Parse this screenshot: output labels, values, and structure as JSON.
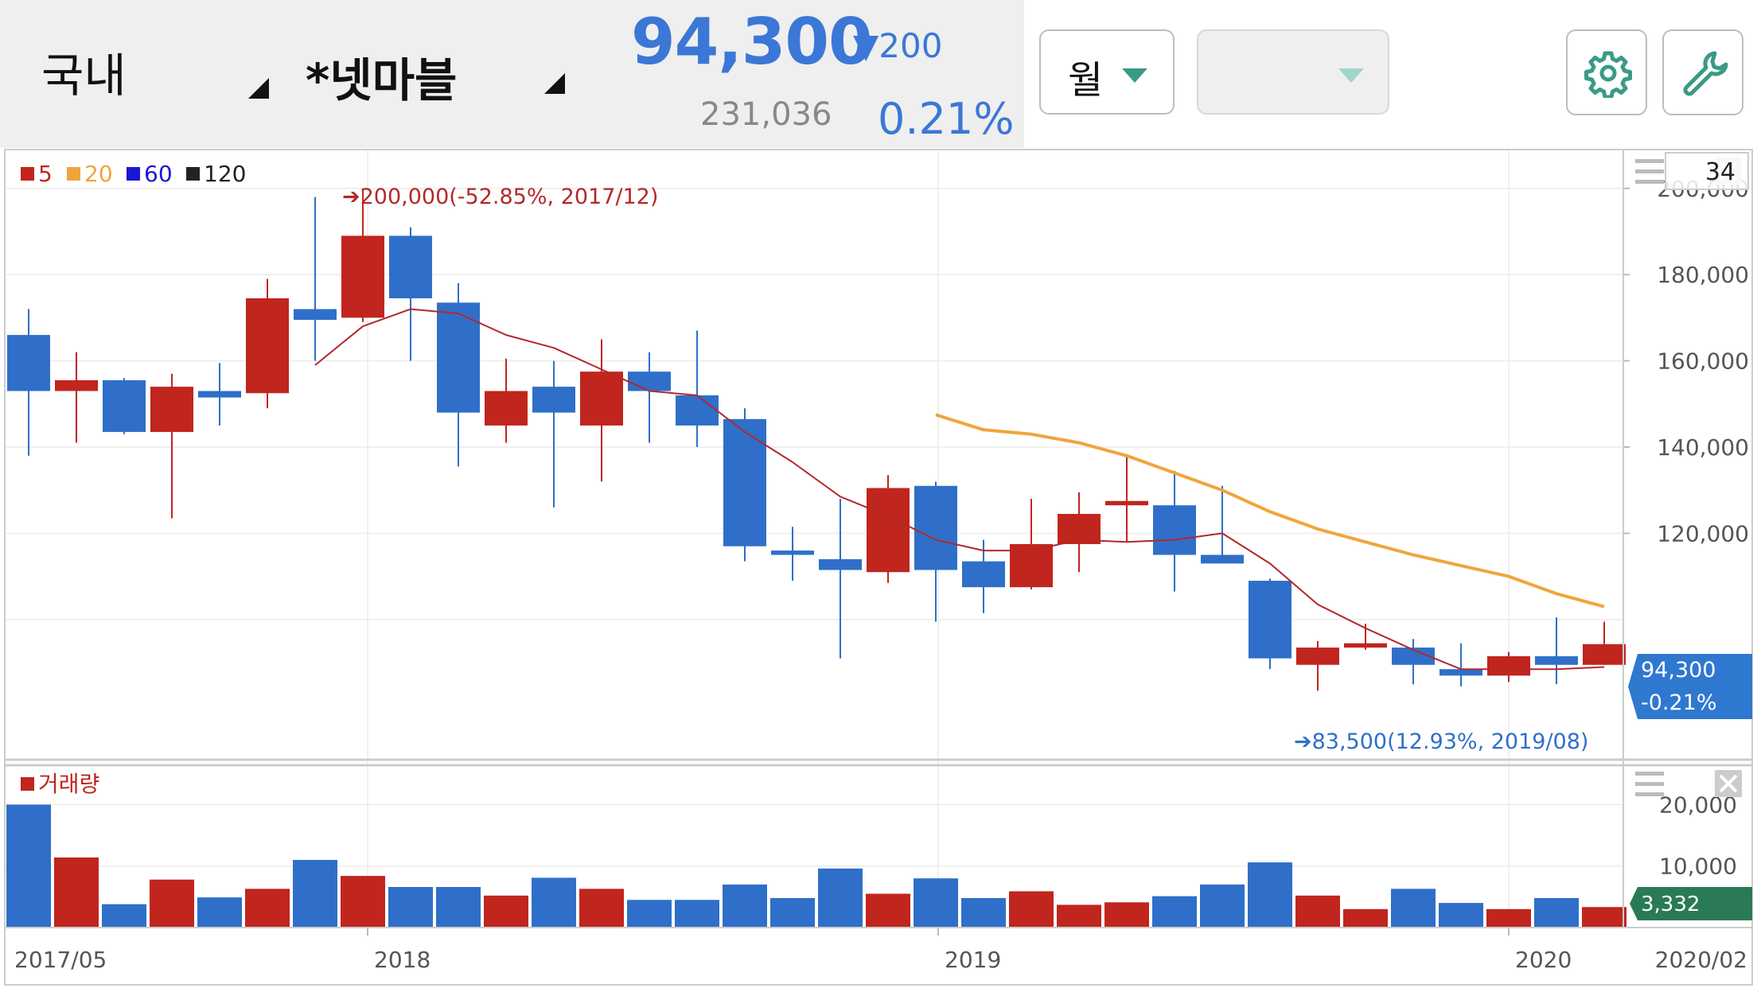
{
  "header": {
    "market": "국내",
    "stock": "*넷마블",
    "price": "94,300",
    "change": "▼200",
    "volume": "231,036",
    "change_pct": "0.21%",
    "period_label": "월",
    "empty_select": "",
    "accent_color": "#3b77d6",
    "settings_icon": "gear-icon",
    "tools_icon": "wrench-icon"
  },
  "legend": {
    "ma5": "5",
    "ma20": "20",
    "ma60": "60",
    "ma120": "120"
  },
  "count_box": "34",
  "annotations": {
    "high": "➔200,000(-52.85%, 2017/12)",
    "low": "➔83,500(12.93%, 2019/08)"
  },
  "price_tag": {
    "value": "94,300",
    "pct": "-0.21%"
  },
  "volume_panel": {
    "title": "거래량",
    "tag": "3,332"
  },
  "x_labels": [
    "2017/05",
    "2018",
    "2019",
    "2020",
    "2020/02"
  ],
  "chart_data": {
    "type": "candlestick",
    "price_ylim": [
      67500,
      209000
    ],
    "price_ticks": [
      200000,
      180000,
      160000,
      140000,
      120000
    ],
    "price_tick_labels": [
      "200,000",
      "180,000",
      "160,000",
      "140,000",
      "120,000"
    ],
    "volume_ylim": [
      0,
      26400
    ],
    "volume_ticks": [
      20000,
      10000
    ],
    "volume_tick_labels": [
      "20,000",
      "10,000"
    ],
    "candles": [
      {
        "month": "2017/05",
        "open": 166000,
        "close": 153000,
        "high": 172000,
        "low": 138000,
        "volume": 20000
      },
      {
        "month": "2017/06",
        "open": 153000,
        "close": 155500,
        "high": 162000,
        "low": 141000,
        "volume": 11400
      },
      {
        "month": "2017/07",
        "open": 155500,
        "close": 143500,
        "high": 156000,
        "low": 143000,
        "volume": 3800
      },
      {
        "month": "2017/08",
        "open": 143500,
        "close": 154000,
        "high": 157000,
        "low": 123500,
        "volume": 7800
      },
      {
        "month": "2017/09",
        "open": 153000,
        "close": 151500,
        "high": 159500,
        "low": 145000,
        "volume": 4900
      },
      {
        "month": "2017/10",
        "open": 152500,
        "close": 174500,
        "high": 179000,
        "low": 149000,
        "volume": 6300
      },
      {
        "month": "2017/11",
        "open": 172000,
        "close": 169500,
        "high": 198000,
        "low": 160000,
        "volume": 11000
      },
      {
        "month": "2017/12",
        "open": 170000,
        "close": 189000,
        "high": 200000,
        "low": 169000,
        "volume": 8400
      },
      {
        "month": "2018/01",
        "open": 189000,
        "close": 174500,
        "high": 191000,
        "low": 160000,
        "volume": 6600
      },
      {
        "month": "2018/02",
        "open": 173500,
        "close": 148000,
        "high": 178000,
        "low": 135500,
        "volume": 6600
      },
      {
        "month": "2018/03",
        "open": 145000,
        "close": 153000,
        "high": 160500,
        "low": 141000,
        "volume": 5200
      },
      {
        "month": "2018/04",
        "open": 154000,
        "close": 148000,
        "high": 160000,
        "low": 126000,
        "volume": 8100
      },
      {
        "month": "2018/05",
        "open": 145000,
        "close": 157500,
        "high": 165000,
        "low": 132000,
        "volume": 6300
      },
      {
        "month": "2018/06",
        "open": 157500,
        "close": 153000,
        "high": 162000,
        "low": 141000,
        "volume": 4500
      },
      {
        "month": "2018/07",
        "open": 152000,
        "close": 145000,
        "high": 167000,
        "low": 140000,
        "volume": 4500
      },
      {
        "month": "2018/08",
        "open": 146500,
        "close": 117000,
        "high": 149000,
        "low": 113500,
        "volume": 7000
      },
      {
        "month": "2018/09",
        "open": 116000,
        "close": 115000,
        "high": 121500,
        "low": 109000,
        "volume": 4800
      },
      {
        "month": "2018/10",
        "open": 114000,
        "close": 111500,
        "high": 128000,
        "low": 91000,
        "volume": 9600
      },
      {
        "month": "2018/11",
        "open": 111000,
        "close": 130500,
        "high": 133500,
        "low": 108500,
        "volume": 5500
      },
      {
        "month": "2018/12",
        "open": 131000,
        "close": 111500,
        "high": 132000,
        "low": 99500,
        "volume": 8000
      },
      {
        "month": "2019/01",
        "open": 113500,
        "close": 107500,
        "high": 118500,
        "low": 101500,
        "volume": 4800
      },
      {
        "month": "2019/02",
        "open": 107500,
        "close": 117500,
        "high": 128000,
        "low": 107000,
        "volume": 5900
      },
      {
        "month": "2019/03",
        "open": 117500,
        "close": 124500,
        "high": 129500,
        "low": 111000,
        "volume": 3700
      },
      {
        "month": "2019/04",
        "open": 126500,
        "close": 127500,
        "high": 138000,
        "low": 118000,
        "volume": 4100
      },
      {
        "month": "2019/05",
        "open": 126500,
        "close": 115000,
        "high": 134500,
        "low": 106500,
        "volume": 5100
      },
      {
        "month": "2019/06",
        "open": 115000,
        "close": 113000,
        "high": 131000,
        "low": 113000,
        "volume": 7000
      },
      {
        "month": "2019/07",
        "open": 109000,
        "close": 91000,
        "high": 109500,
        "low": 88500,
        "volume": 10600
      },
      {
        "month": "2019/08",
        "open": 89500,
        "close": 93500,
        "high": 95000,
        "low": 83500,
        "volume": 5200
      },
      {
        "month": "2019/09",
        "open": 93500,
        "close": 94500,
        "high": 99000,
        "low": 93000,
        "volume": 3000
      },
      {
        "month": "2019/10",
        "open": 93500,
        "close": 89500,
        "high": 95500,
        "low": 85000,
        "volume": 6300
      },
      {
        "month": "2019/11",
        "open": 88500,
        "close": 87000,
        "high": 94500,
        "low": 84500,
        "volume": 4000
      },
      {
        "month": "2019/12",
        "open": 87000,
        "close": 91500,
        "high": 92500,
        "low": 85500,
        "volume": 3000
      },
      {
        "month": "2020/01",
        "open": 91500,
        "close": 89500,
        "high": 100500,
        "low": 85000,
        "volume": 4800
      },
      {
        "month": "2020/02",
        "open": 89500,
        "close": 94300,
        "high": 99500,
        "low": 89500,
        "volume": 3332
      }
    ],
    "ma5": [
      null,
      null,
      null,
      null,
      null,
      null,
      159000,
      168000,
      172000,
      171000,
      166000,
      163000,
      158000,
      153000,
      152000,
      143500,
      136500,
      128500,
      124000,
      118500,
      116000,
      116000,
      118500,
      118000,
      118500,
      120000,
      113000,
      103500,
      98000,
      93000,
      88500,
      88500,
      88500,
      89000
    ],
    "ma20": [
      null,
      null,
      null,
      null,
      null,
      null,
      null,
      null,
      null,
      null,
      null,
      null,
      null,
      null,
      null,
      null,
      null,
      null,
      null,
      147500,
      144000,
      143000,
      141000,
      138000,
      134000,
      130000,
      125000,
      121000,
      118000,
      115000,
      112500,
      110000,
      106000,
      103000
    ],
    "colors": {
      "up": "#c0251e",
      "down": "#2f6fc9",
      "ma5": "#b3282b",
      "ma20": "#f0a53c",
      "ma60": "#1a16d8",
      "ma120": "#222222"
    }
  }
}
